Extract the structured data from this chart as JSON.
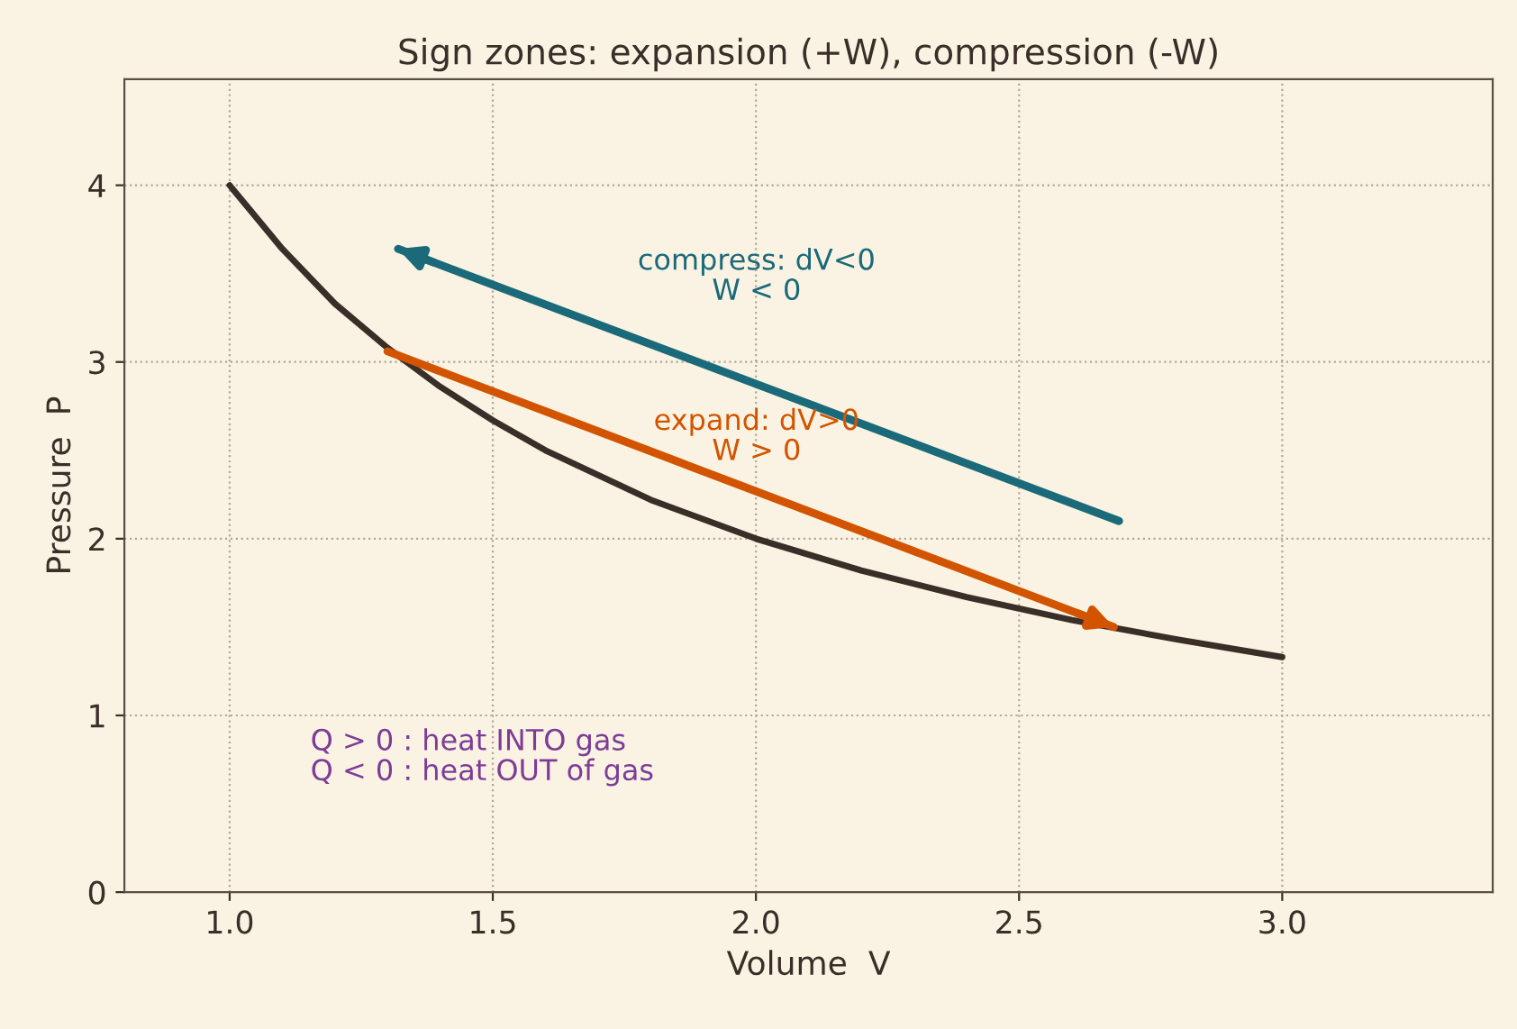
{
  "chart_data": {
    "type": "line",
    "title": "Sign zones: expansion (+W), compression (-W)",
    "xlabel": "Volume  V",
    "ylabel": "Pressure  P",
    "xlim": [
      0.8,
      3.4
    ],
    "ylim": [
      0,
      4.6
    ],
    "xticks": [
      {
        "value": 1,
        "label": "1.0"
      },
      {
        "value": 1.5,
        "label": "1.5"
      },
      {
        "value": 2,
        "label": "2.0"
      },
      {
        "value": 2.5,
        "label": "2.5"
      },
      {
        "value": 3,
        "label": "3.0"
      }
    ],
    "yticks": [
      0,
      1,
      2,
      3,
      4
    ],
    "grid": true,
    "series": [
      {
        "color": "#3a2e28",
        "x": [
          1.0,
          1.1,
          1.2,
          1.3,
          1.4,
          1.5,
          1.6,
          1.8,
          2.0,
          2.2,
          2.4,
          2.6,
          2.8,
          3.0
        ],
        "values": [
          4.0,
          3.64,
          3.33,
          3.08,
          2.86,
          2.67,
          2.5,
          2.22,
          2.0,
          1.82,
          1.67,
          1.54,
          1.43,
          1.33
        ]
      },
      {
        "color": "#d35400",
        "x": [
          1.3,
          2.68
        ],
        "values": [
          3.06,
          1.5
        ]
      },
      {
        "color": "#1b6a7a",
        "x": [
          2.69,
          1.32
        ],
        "values": [
          2.1,
          3.64
        ]
      }
    ],
    "annotations": [
      "compress: dV<0\nW < 0",
      "expand: dV>0\nW > 0",
      "Q > 0 : heat INTO gas\nQ < 0 : heat OUT of gas"
    ]
  }
}
